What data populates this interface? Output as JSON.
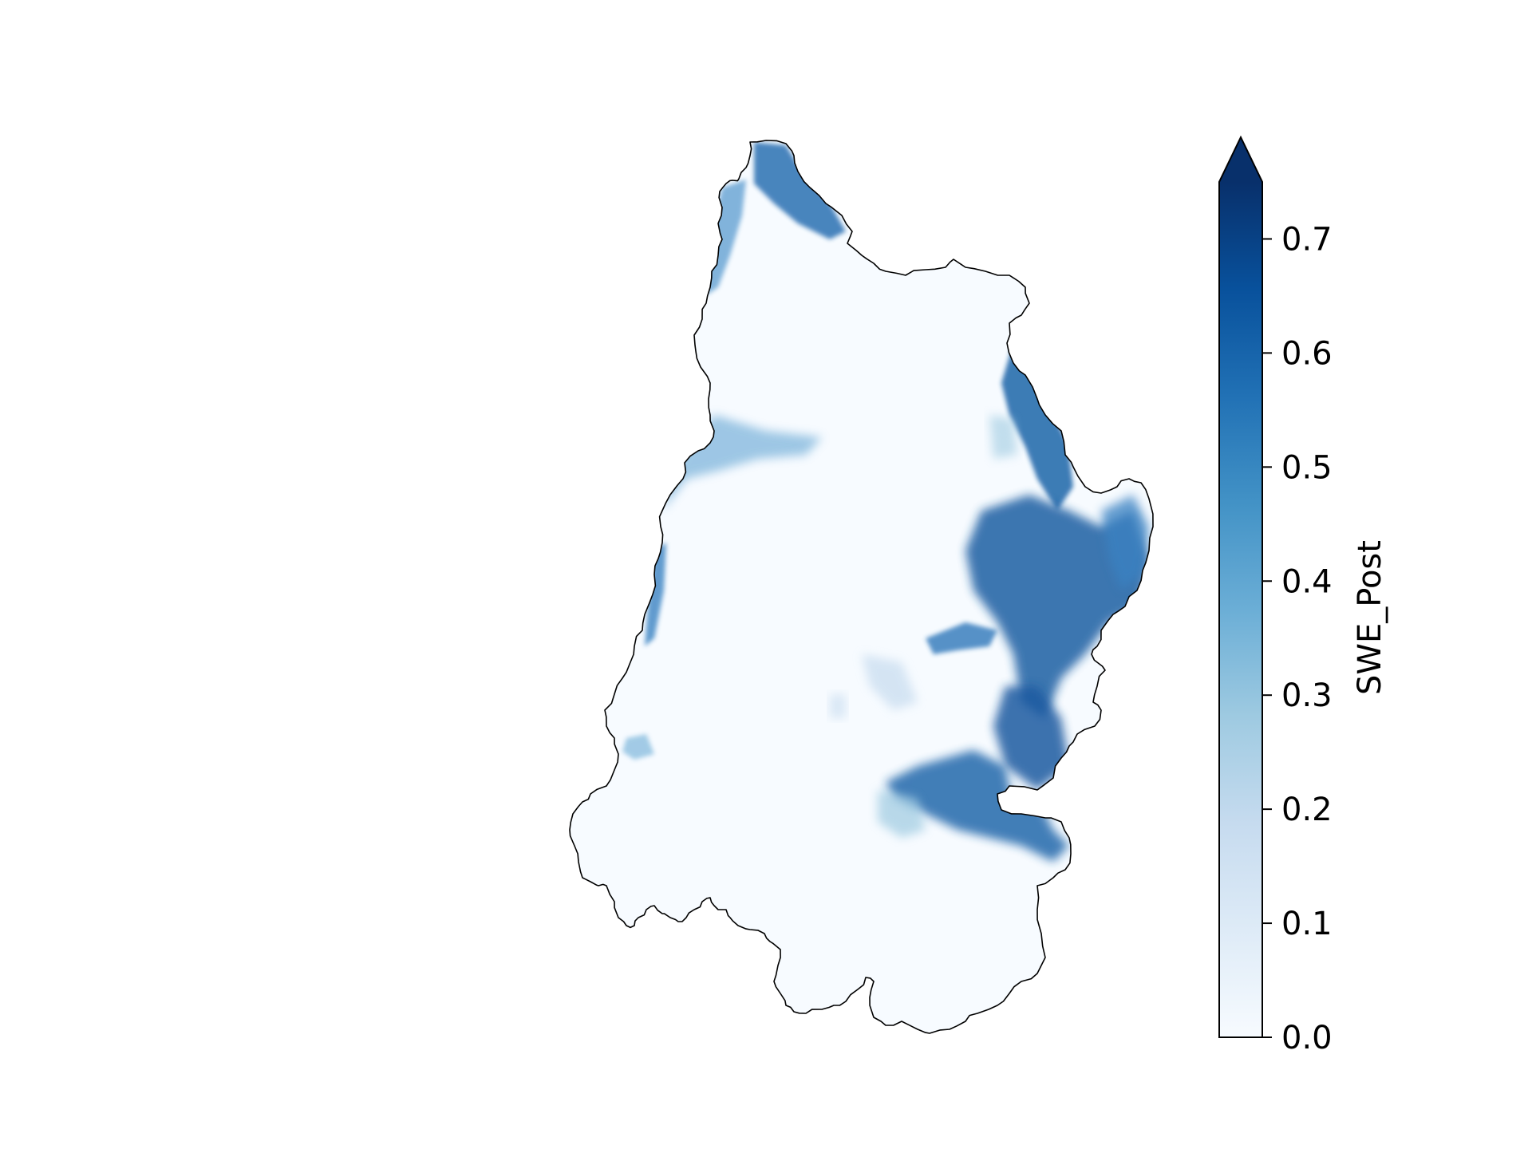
{
  "map": {
    "region": "basin",
    "colormap": "Blues",
    "background": "#f7fbff",
    "outline_color": "#000000"
  },
  "colorbar": {
    "label": "SWE_Post",
    "min": 0.0,
    "max": 0.75,
    "extend": "max",
    "ticks": [
      {
        "value": 0.0,
        "label": "0.0"
      },
      {
        "value": 0.1,
        "label": "0.1"
      },
      {
        "value": 0.2,
        "label": "0.2"
      },
      {
        "value": 0.3,
        "label": "0.3"
      },
      {
        "value": 0.4,
        "label": "0.4"
      },
      {
        "value": 0.5,
        "label": "0.5"
      },
      {
        "value": 0.6,
        "label": "0.6"
      },
      {
        "value": 0.7,
        "label": "0.7"
      }
    ],
    "colors": [
      "#f7fbff",
      "#deebf7",
      "#c6dbef",
      "#9ecae1",
      "#6baed6",
      "#4292c6",
      "#2171b5",
      "#08519c",
      "#08306b"
    ]
  }
}
